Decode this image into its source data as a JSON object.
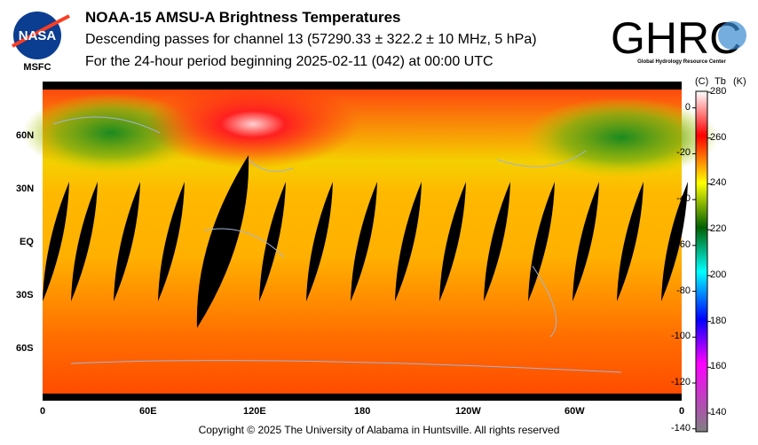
{
  "header": {
    "title": "NOAA-15 AMSU-A Brightness Temperatures",
    "subtitle": "Descending passes for channel 13 (57290.33 ± 322.2 ± 10 MHz, 5 hPa)",
    "period": "For the 24-hour period beginning 2025-02-11 (042) at 00:00 UTC"
  },
  "logos": {
    "nasa": "NASA",
    "msfc": "MSFC",
    "ghrc": "GHRC",
    "ghrc_sub": "Global Hydrology Resource Center"
  },
  "footer": {
    "copyright": "Copyright © 2025 The University of Alabama in Huntsville.  All rights reserved"
  },
  "chart_data": {
    "type": "heatmap",
    "title": "NOAA-15 AMSU-A Brightness Temperatures",
    "x_ticks": [
      "0",
      "60E",
      "120E",
      "180",
      "120W",
      "60W",
      "0"
    ],
    "y_ticks": [
      "60N",
      "30N",
      "EQ",
      "30S",
      "60S"
    ],
    "y_tick_values": [
      60,
      30,
      0,
      -30,
      -60
    ],
    "colorbar": {
      "label_c": "(C)",
      "label_tb": "Tb",
      "label_k": "(K)",
      "kelvin_ticks": [
        280,
        260,
        240,
        220,
        200,
        180,
        160,
        140
      ],
      "celsius_ticks": [
        0,
        -20,
        -40,
        -60,
        -80,
        -100,
        -120,
        -140
      ],
      "range_k": [
        130,
        280
      ]
    },
    "colors": {
      "missing": "#000000",
      "coast": "#a0b4d8"
    }
  }
}
